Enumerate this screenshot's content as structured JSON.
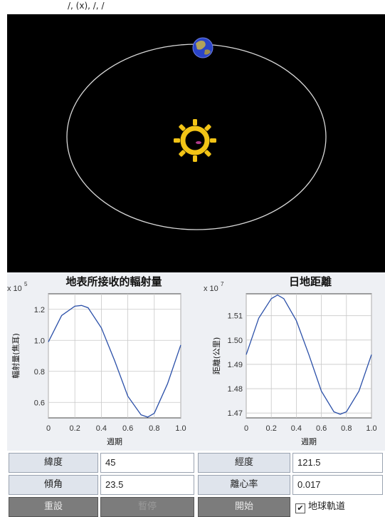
{
  "header": {
    "caption": "/, (x), /, /"
  },
  "icons": {
    "earth": "earth-icon",
    "sun": "sun-icon"
  },
  "colors": {
    "space_bg": "#000000",
    "orbit": "#d8d8d8",
    "sun": "#f2c416",
    "curve": "#2a4fa8"
  },
  "charts": [
    {
      "title": "地表所接收的輻射量",
      "exponent": {
        "base": "x 10",
        "power": "5"
      },
      "ylabel": "輻射量(焦耳)",
      "xlabel": "週期",
      "xticks": [
        "0",
        "0.2",
        "0.4",
        "0.6",
        "0.8",
        "1.0"
      ],
      "yticks": [
        "1.2",
        "1.0",
        "0.8",
        "0.6"
      ]
    },
    {
      "title": "日地距離",
      "exponent": {
        "base": "x 10",
        "power": "7"
      },
      "ylabel": "距離(公里)",
      "xlabel": "週期",
      "xticks": [
        "0",
        "0.2",
        "0.4",
        "0.6",
        "0.8",
        "1.0"
      ],
      "yticks": [
        "1.51",
        "1.50",
        "1.49",
        "1.48",
        "1.47"
      ]
    }
  ],
  "chart_data": [
    {
      "type": "line",
      "title": "地表所接收的輻射量",
      "xlabel": "週期",
      "ylabel": "輻射量(焦耳)",
      "y_scale_factor": "x 10^5",
      "xlim": [
        0,
        1
      ],
      "ylim": [
        0.5,
        1.3
      ],
      "grid": true,
      "x": [
        0,
        0.1,
        0.2,
        0.25,
        0.3,
        0.4,
        0.5,
        0.6,
        0.7,
        0.75,
        0.8,
        0.9,
        1.0
      ],
      "y": [
        0.99,
        1.16,
        1.22,
        1.225,
        1.21,
        1.08,
        0.87,
        0.64,
        0.52,
        0.505,
        0.53,
        0.72,
        0.97
      ]
    },
    {
      "type": "line",
      "title": "日地距離",
      "xlabel": "週期",
      "ylabel": "距離(公里)",
      "y_scale_factor": "x 10^7",
      "xlim": [
        0,
        1
      ],
      "ylim": [
        1.468,
        1.519
      ],
      "grid": true,
      "x": [
        0,
        0.1,
        0.2,
        0.25,
        0.3,
        0.4,
        0.5,
        0.6,
        0.7,
        0.75,
        0.8,
        0.9,
        1.0
      ],
      "y": [
        1.494,
        1.509,
        1.517,
        1.5185,
        1.517,
        1.508,
        1.494,
        1.479,
        1.4705,
        1.4695,
        1.4705,
        1.479,
        1.494
      ]
    }
  ],
  "controls": {
    "latitude_label": "緯度",
    "latitude_value": "45",
    "longitude_label": "經度",
    "longitude_value": "121.5",
    "tilt_label": "傾角",
    "tilt_value": "23.5",
    "eccentricity_label": "離心率",
    "eccentricity_value": "0.017",
    "reset_label": "重設",
    "pause_label": "暫停",
    "start_label": "開始",
    "orbit_checkbox_label": "地球軌道",
    "orbit_checkbox_checked": true
  }
}
